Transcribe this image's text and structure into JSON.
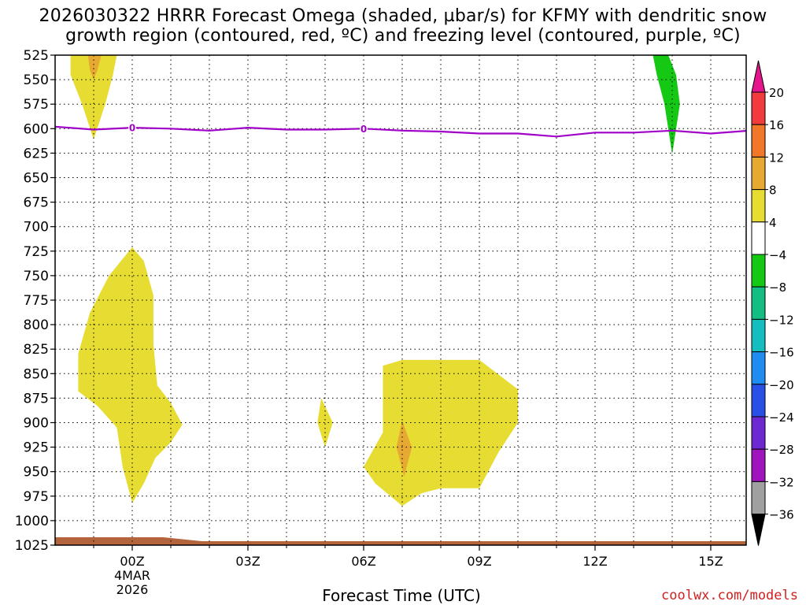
{
  "title_line1": "2026030322 HRRR Forecast Omega (shaded, µbar/s) for KFMY with dendritic snow",
  "title_line2": "growth region (contoured, red, ºC) and freezing level (contoured, purple, ºC)",
  "xlabel": "Forecast Time (UTC)",
  "credit": "coolwx.com/models",
  "chart_data": {
    "type": "contour",
    "title": "2026030322 HRRR Forecast Omega (shaded, µbar/s) for KFMY with dendritic snow growth region (contoured, red, ºC) and freezing level (contoured, purple, ºC)",
    "xlabel": "Forecast Time (UTC)",
    "ylabel": "",
    "x_units": "hours since 2026-03-04 00Z",
    "xlim": [
      -2,
      16
    ],
    "ylim": [
      1025,
      525
    ],
    "y_ticks": [
      525,
      550,
      575,
      600,
      625,
      650,
      675,
      700,
      725,
      750,
      775,
      800,
      825,
      850,
      875,
      900,
      925,
      950,
      975,
      1000,
      1025
    ],
    "x_ticks": [
      {
        "x": 0,
        "label": "00Z",
        "sublabel": "4MAR",
        "sublabel2": "2026"
      },
      {
        "x": 3,
        "label": "03Z"
      },
      {
        "x": 6,
        "label": "06Z"
      },
      {
        "x": 9,
        "label": "09Z"
      },
      {
        "x": 12,
        "label": "12Z"
      },
      {
        "x": 15,
        "label": "15Z"
      }
    ],
    "grid": true,
    "freezing_level": {
      "color": "#a000c8",
      "label": "0",
      "label_x": [
        0,
        6
      ],
      "points": [
        [
          -2,
          598
        ],
        [
          -1,
          601
        ],
        [
          0,
          599
        ],
        [
          1,
          600
        ],
        [
          2,
          602
        ],
        [
          3,
          599
        ],
        [
          4,
          601
        ],
        [
          5,
          601
        ],
        [
          6,
          600
        ],
        [
          7,
          602
        ],
        [
          8,
          603
        ],
        [
          9,
          605
        ],
        [
          10,
          605
        ],
        [
          11,
          608
        ],
        [
          12,
          604
        ],
        [
          13,
          604
        ],
        [
          14,
          602
        ],
        [
          15,
          605
        ],
        [
          16,
          602
        ]
      ]
    },
    "omega_regions": [
      {
        "level": "4 to 8",
        "color": "#e6dc32",
        "points": [
          [
            -1.6,
            525
          ],
          [
            -0.4,
            525
          ],
          [
            -0.5,
            545
          ],
          [
            -0.7,
            575
          ],
          [
            -1.0,
            611
          ],
          [
            -1.3,
            575
          ],
          [
            -1.6,
            545
          ]
        ]
      },
      {
        "level": "8 to 12",
        "color": "#e6aa32",
        "points": [
          [
            -1.15,
            525
          ],
          [
            -0.8,
            525
          ],
          [
            -0.9,
            540
          ],
          [
            -1.0,
            550
          ],
          [
            -1.1,
            540
          ]
        ]
      },
      {
        "level": "-8 to -4",
        "color": "#14c814",
        "points": [
          [
            13.5,
            525
          ],
          [
            13.9,
            525
          ],
          [
            14.1,
            545
          ],
          [
            14.2,
            575
          ],
          [
            14.0,
            626
          ],
          [
            13.8,
            575
          ],
          [
            13.6,
            545
          ]
        ]
      },
      {
        "level": "4 to 8",
        "color": "#e6dc32",
        "points": [
          [
            0,
            721
          ],
          [
            0.3,
            735
          ],
          [
            0.55,
            770
          ],
          [
            0.55,
            820
          ],
          [
            0.65,
            862
          ],
          [
            1.0,
            880
          ],
          [
            1.3,
            902
          ],
          [
            1.0,
            920
          ],
          [
            0.6,
            936
          ],
          [
            0.3,
            962
          ],
          [
            0.0,
            982
          ],
          [
            -0.25,
            945
          ],
          [
            -0.4,
            905
          ],
          [
            -0.9,
            883
          ],
          [
            -1.4,
            868
          ],
          [
            -1.4,
            830
          ],
          [
            -1.1,
            788
          ],
          [
            -0.6,
            750
          ]
        ]
      },
      {
        "level": "4 to 8",
        "color": "#e6dc32",
        "points": [
          [
            4.9,
            875
          ],
          [
            5.2,
            900
          ],
          [
            5.0,
            925
          ],
          [
            4.8,
            900
          ]
        ]
      },
      {
        "level": "4 to 8",
        "color": "#e6dc32",
        "points": [
          [
            6.5,
            842
          ],
          [
            7.0,
            836
          ],
          [
            8.0,
            836
          ],
          [
            9.0,
            836
          ],
          [
            10.0,
            866
          ],
          [
            10.0,
            900
          ],
          [
            9.5,
            930
          ],
          [
            9.0,
            967
          ],
          [
            8.0,
            967
          ],
          [
            7.5,
            972
          ],
          [
            7.0,
            985
          ],
          [
            6.3,
            962
          ],
          [
            6.0,
            945
          ],
          [
            6.5,
            910
          ],
          [
            6.5,
            870
          ]
        ]
      },
      {
        "level": "8 to 12",
        "color": "#e6aa32",
        "points": [
          [
            7.0,
            898
          ],
          [
            7.25,
            925
          ],
          [
            7.05,
            955
          ],
          [
            6.85,
            925
          ]
        ]
      }
    ],
    "terrain": {
      "color": "#b4643c",
      "from_pressure": 1018,
      "to_pressure": 1030,
      "left_pressure": 1017,
      "right_pressure": 1021
    },
    "colorbar": {
      "labels": [
        "20",
        "16",
        "12",
        "8",
        "4",
        "-4",
        "-8",
        "-12",
        "-16",
        "-20",
        "-24",
        "-28",
        "-32",
        "-36"
      ],
      "colors": [
        "#f03c3c",
        "#f07828",
        "#e6aa32",
        "#e6dc32",
        "#ffffff",
        "#14c814",
        "#14be82",
        "#14bebe",
        "#1e8cf0",
        "#2850e6",
        "#6e28d2",
        "#a014be",
        "#a0a0a0"
      ],
      "top_color": "#e6148c",
      "bottom_color": "#000000"
    }
  }
}
